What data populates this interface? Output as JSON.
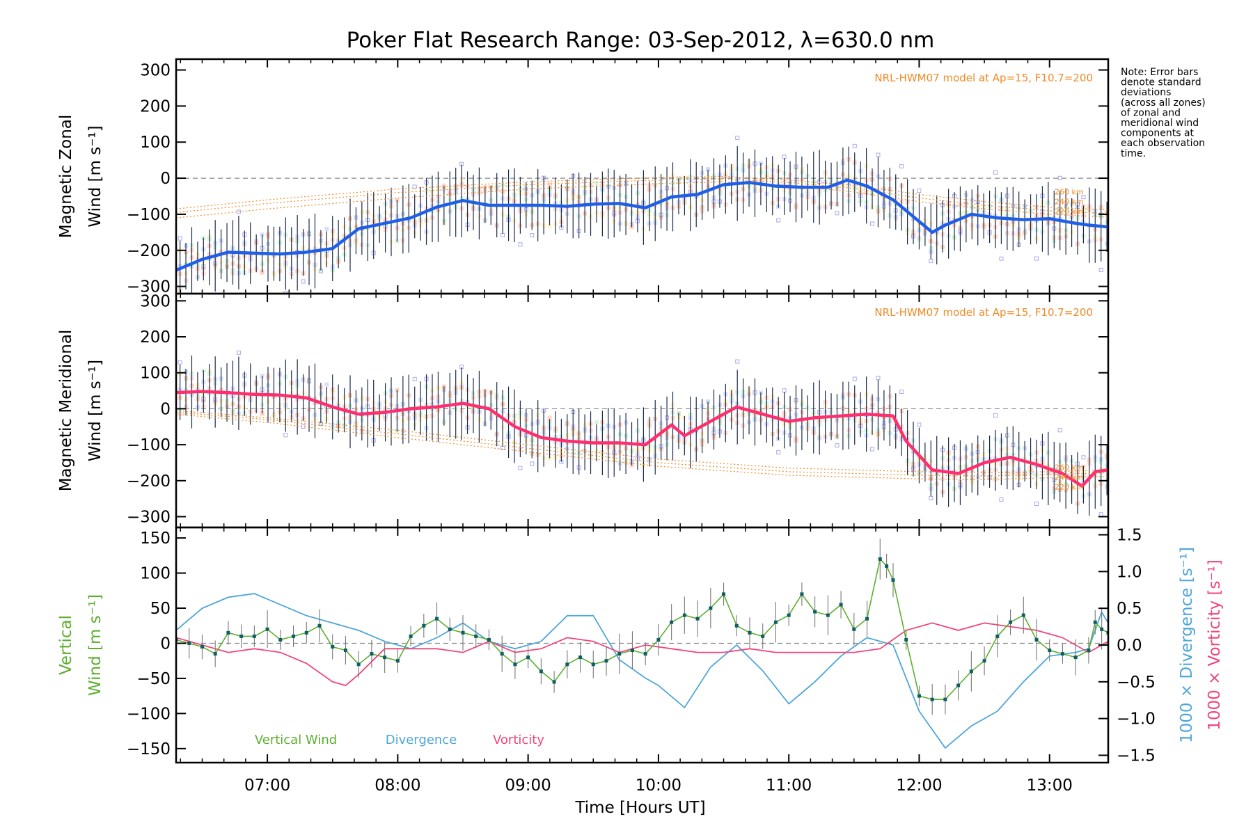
{
  "title": "Poker Flat Research Range: 03-Sep-2012, λ=630.0 nm",
  "note": [
    "Note: Error bars",
    "denote standard",
    "deviations",
    "(across all zones)",
    "of zonal and",
    "meridional wind",
    "components at",
    "each observation",
    "time."
  ],
  "model_label": "NRL-HWM07 model at Ap=15, F10.7=200",
  "altitude_labels": [
    "260 km",
    "240 km",
    "220 km"
  ],
  "x_axis": {
    "label": "Time [Hours UT]",
    "tick_labels": [
      "07:00",
      "08:00",
      "09:00",
      "10:00",
      "11:00",
      "12:00",
      "13:00"
    ],
    "tick_values": [
      7,
      8,
      9,
      10,
      11,
      12,
      13
    ],
    "range": [
      6.3,
      13.45
    ]
  },
  "colors": {
    "zonal_mean": "#1f5fe8",
    "meridional_mean": "#ff2e6f",
    "vertical_wind": "#5cae2e",
    "divergence": "#4ea6d8",
    "vorticity": "#f0457a",
    "model": "#f08a24",
    "error_bar": "#1a2a4a",
    "scatter_points": "#a9a9ee"
  },
  "chart_data": [
    {
      "type": "line",
      "panel": "zonal",
      "ylabel_line1": "Magnetic Zonal",
      "ylabel_line2": "Wind [m s⁻¹]",
      "ylim": [
        -320,
        330
      ],
      "yticks": [
        -300,
        -200,
        -100,
        0,
        100,
        200,
        300
      ],
      "ytick_labels": [
        "−300",
        "−200",
        "−100",
        "0",
        "100",
        "200",
        "300"
      ],
      "series": [
        {
          "name": "",
          "x": [
            6.3,
            6.5,
            6.7,
            6.9,
            7.1,
            7.3,
            7.5,
            7.7,
            7.9,
            8.1,
            8.3,
            8.5,
            8.7,
            8.9,
            9.1,
            9.3,
            9.5,
            9.7,
            9.9,
            10.1,
            10.3,
            10.5,
            10.7,
            10.9,
            11.1,
            11.3,
            11.45,
            11.6,
            11.8,
            12.0,
            12.1,
            12.2,
            12.4,
            12.6,
            12.8,
            13.0,
            13.2,
            13.3,
            13.45
          ],
          "y": [
            -255,
            -225,
            -205,
            -208,
            -210,
            -205,
            -195,
            -140,
            -125,
            -110,
            -80,
            -62,
            -75,
            -75,
            -75,
            -78,
            -72,
            -70,
            -82,
            -52,
            -45,
            -18,
            -12,
            -22,
            -25,
            -25,
            -5,
            -22,
            -60,
            -120,
            -150,
            -130,
            -100,
            -110,
            -115,
            -112,
            -125,
            -130,
            -135
          ]
        }
      ],
      "model_curves": {
        "x": [
          6.3,
          7.0,
          8.0,
          9.0,
          10.0,
          10.5,
          11.0,
          11.5,
          12.0,
          12.5,
          13.0,
          13.45
        ],
        "series": [
          {
            "y": [
              -85,
              -60,
              -30,
              -10,
              2,
              5,
              -5,
              -20,
              -45,
              -65,
              -80,
              -88
            ]
          },
          {
            "y": [
              -95,
              -70,
              -40,
              -18,
              -5,
              -2,
              -12,
              -28,
              -55,
              -75,
              -90,
              -98
            ]
          },
          {
            "y": [
              -110,
              -85,
              -55,
              -30,
              -15,
              -10,
              -20,
              -38,
              -65,
              -85,
              -100,
              -108
            ]
          }
        ]
      }
    },
    {
      "type": "line",
      "panel": "meridional",
      "ylabel_line1": "Magnetic Meridional",
      "ylabel_line2": "Wind [m s⁻¹]",
      "ylim": [
        -330,
        320
      ],
      "yticks": [
        -300,
        -200,
        -100,
        0,
        100,
        200,
        300
      ],
      "ytick_labels": [
        "−300",
        "−200",
        "−100",
        "0",
        "100",
        "200",
        "300"
      ],
      "series": [
        {
          "name": "",
          "x": [
            6.3,
            6.5,
            6.7,
            6.9,
            7.1,
            7.3,
            7.5,
            7.7,
            7.9,
            8.1,
            8.3,
            8.5,
            8.7,
            8.9,
            9.1,
            9.3,
            9.5,
            9.7,
            9.9,
            10.1,
            10.2,
            10.4,
            10.6,
            10.8,
            11.0,
            11.2,
            11.4,
            11.6,
            11.8,
            11.9,
            12.1,
            12.3,
            12.5,
            12.7,
            12.9,
            13.1,
            13.25,
            13.35,
            13.45
          ],
          "y": [
            45,
            48,
            45,
            40,
            38,
            30,
            5,
            -15,
            -10,
            0,
            5,
            15,
            0,
            -50,
            -80,
            -90,
            -95,
            -95,
            -100,
            -45,
            -75,
            -35,
            5,
            -15,
            -35,
            -25,
            -20,
            -15,
            -20,
            -90,
            -170,
            -180,
            -150,
            -135,
            -155,
            -180,
            -215,
            -175,
            -170
          ]
        }
      ],
      "model_curves": {
        "x": [
          6.3,
          7.0,
          8.0,
          9.0,
          10.0,
          11.0,
          12.0,
          12.5,
          13.0,
          13.45
        ],
        "series": [
          {
            "y": [
              -5,
              -25,
              -60,
              -100,
              -140,
              -165,
              -175,
              -178,
              -175,
              -170
            ]
          },
          {
            "y": [
              -10,
              -30,
              -70,
              -110,
              -150,
              -175,
              -185,
              -187,
              -183,
              -178
            ]
          },
          {
            "y": [
              -15,
              -38,
              -80,
              -120,
              -160,
              -185,
              -195,
              -197,
              -192,
              -188
            ]
          }
        ]
      }
    },
    {
      "type": "line",
      "panel": "vertical",
      "ylabel_line1": "Vertical",
      "ylabel_line2": "Wind [m s⁻¹]",
      "ylim": [
        -170,
        165
      ],
      "yticks": [
        -150,
        -100,
        -50,
        0,
        50,
        100,
        150
      ],
      "ytick_labels": [
        "−150",
        "−100",
        "−50",
        "0",
        "50",
        "100",
        "150"
      ],
      "right_axis": {
        "ylabel_divergence": "1000 × Divergence [s⁻¹]",
        "ylabel_vorticity": "1000 × Vorticity [s⁻¹]",
        "ylim": [
          -1.6,
          1.6
        ],
        "yticks": [
          -1.5,
          -1.0,
          -0.5,
          0.0,
          0.5,
          1.0,
          1.5
        ],
        "ytick_labels": [
          "−1.5",
          "−1.0",
          "−0.5",
          "0.0",
          "0.5",
          "1.0",
          "1.5"
        ]
      },
      "legend": [
        "Vertical Wind",
        "Divergence",
        "Vorticity"
      ],
      "series": [
        {
          "name": "Vertical Wind",
          "axis": "left",
          "x": [
            6.3,
            6.4,
            6.5,
            6.6,
            6.7,
            6.8,
            6.9,
            7.0,
            7.1,
            7.2,
            7.3,
            7.4,
            7.5,
            7.6,
            7.7,
            7.8,
            7.9,
            8.0,
            8.1,
            8.2,
            8.3,
            8.4,
            8.5,
            8.6,
            8.7,
            8.8,
            8.9,
            9.0,
            9.1,
            9.2,
            9.3,
            9.4,
            9.5,
            9.6,
            9.7,
            9.8,
            9.9,
            10.0,
            10.1,
            10.2,
            10.3,
            10.4,
            10.5,
            10.6,
            10.7,
            10.8,
            10.9,
            11.0,
            11.1,
            11.2,
            11.3,
            11.4,
            11.5,
            11.6,
            11.7,
            11.75,
            11.8,
            11.9,
            12.0,
            12.1,
            12.2,
            12.3,
            12.4,
            12.5,
            12.6,
            12.7,
            12.8,
            12.9,
            13.0,
            13.1,
            13.2,
            13.3,
            13.35,
            13.4,
            13.45
          ],
          "y": [
            5,
            0,
            -5,
            -15,
            15,
            10,
            10,
            20,
            5,
            10,
            15,
            25,
            -5,
            -10,
            -30,
            -15,
            -20,
            -25,
            10,
            25,
            35,
            20,
            15,
            10,
            5,
            -15,
            -30,
            -20,
            -40,
            -55,
            -30,
            -20,
            -30,
            -25,
            -15,
            -10,
            -15,
            5,
            30,
            40,
            35,
            50,
            70,
            25,
            15,
            10,
            30,
            40,
            70,
            45,
            40,
            55,
            20,
            35,
            120,
            110,
            90,
            5,
            -75,
            -80,
            -80,
            -60,
            -40,
            -25,
            10,
            30,
            40,
            5,
            -10,
            -15,
            -20,
            -10,
            30,
            20,
            15
          ]
        },
        {
          "name": "Divergence",
          "axis": "right",
          "x": [
            6.3,
            6.5,
            6.7,
            6.9,
            7.1,
            7.3,
            7.5,
            7.7,
            7.9,
            8.1,
            8.3,
            8.5,
            8.7,
            8.9,
            9.1,
            9.3,
            9.5,
            9.7,
            9.9,
            10.0,
            10.2,
            10.4,
            10.6,
            10.8,
            11.0,
            11.2,
            11.4,
            11.6,
            11.8,
            12.0,
            12.2,
            12.4,
            12.6,
            12.8,
            13.0,
            13.2,
            13.3,
            13.4,
            13.45
          ],
          "y": [
            0.2,
            0.5,
            0.65,
            0.7,
            0.55,
            0.4,
            0.3,
            0.2,
            0.05,
            -0.05,
            0.1,
            0.3,
            0.05,
            -0.05,
            0.05,
            0.4,
            0.4,
            -0.2,
            -0.45,
            -0.55,
            -0.85,
            -0.3,
            0.0,
            -0.35,
            -0.8,
            -0.5,
            -0.15,
            0.1,
            0.0,
            -0.9,
            -1.4,
            -1.1,
            -0.9,
            -0.5,
            -0.15,
            -0.1,
            -0.05,
            0.45,
            0.3
          ]
        },
        {
          "name": "Vorticity",
          "axis": "right",
          "x": [
            6.3,
            6.5,
            6.7,
            6.9,
            7.1,
            7.3,
            7.5,
            7.6,
            7.7,
            7.9,
            8.1,
            8.3,
            8.5,
            8.7,
            8.9,
            9.1,
            9.3,
            9.5,
            9.7,
            9.9,
            10.1,
            10.3,
            10.5,
            10.7,
            10.9,
            11.1,
            11.3,
            11.5,
            11.7,
            11.9,
            12.1,
            12.3,
            12.5,
            12.7,
            12.9,
            13.1,
            13.3,
            13.45
          ],
          "y": [
            0.1,
            0.0,
            -0.1,
            -0.05,
            -0.1,
            -0.25,
            -0.5,
            -0.55,
            -0.4,
            -0.05,
            -0.05,
            -0.05,
            -0.1,
            0.05,
            -0.1,
            -0.05,
            0.1,
            0.05,
            -0.1,
            0.0,
            -0.05,
            -0.1,
            -0.1,
            -0.05,
            -0.1,
            -0.1,
            -0.1,
            -0.1,
            -0.05,
            0.2,
            0.3,
            0.2,
            0.3,
            0.25,
            0.2,
            0.1,
            -0.1,
            0.05
          ]
        }
      ]
    }
  ]
}
